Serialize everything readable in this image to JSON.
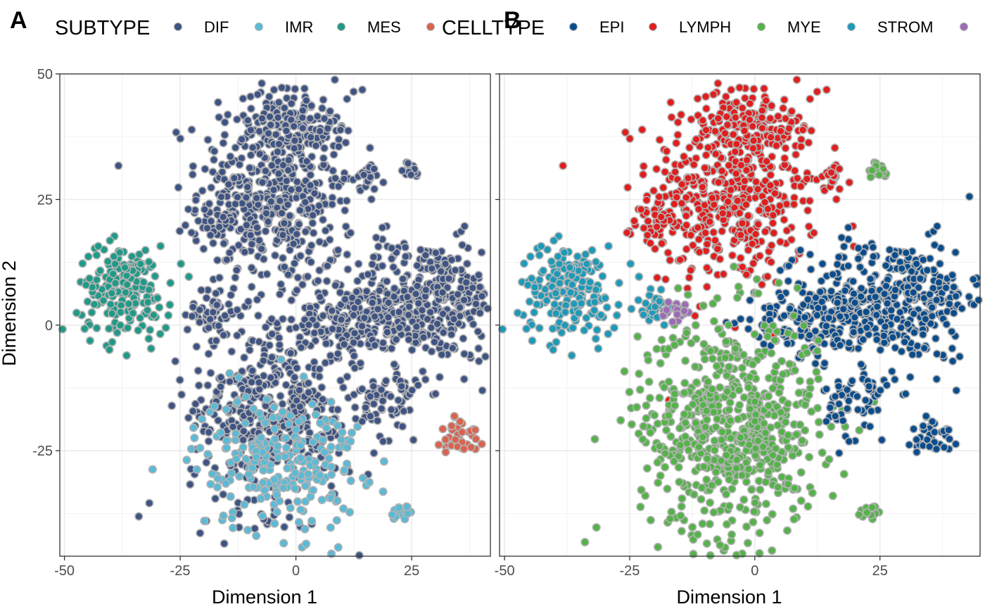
{
  "chart_data": [
    {
      "type": "scatter",
      "panel_label": "A",
      "xlabel": "Dimension 1",
      "ylabel": "Dimension 2",
      "xlim": [
        -51,
        42
      ],
      "ylim": [
        -46,
        50
      ],
      "xticks": [
        -50,
        -25,
        0,
        25
      ],
      "yticks": [
        -25,
        0,
        25,
        50
      ],
      "grid": true,
      "legend": {
        "position": "top",
        "title": "SUBTYPE",
        "entries": [
          {
            "label": "DIF",
            "color": "#3f5483"
          },
          {
            "label": "IMR",
            "color": "#5bbad5"
          },
          {
            "label": "MES",
            "color": "#1f9a87"
          },
          {
            "label": "",
            "color": "#d9634f"
          }
        ]
      },
      "point_outline_color": "#b3b3b3",
      "clusters": [
        {
          "color": "#3f5483",
          "center": [
            -4,
            27
          ],
          "spread": [
            8.5,
            10
          ],
          "count": 520
        },
        {
          "color": "#3f5483",
          "center": [
            -1,
            41
          ],
          "spread": [
            4,
            3
          ],
          "count": 70
        },
        {
          "color": "#3f5483",
          "center": [
            -15,
            21
          ],
          "spread": [
            3,
            3
          ],
          "count": 45
        },
        {
          "color": "#3f5483",
          "center": [
            28,
            5
          ],
          "spread": [
            9,
            6
          ],
          "count": 380
        },
        {
          "color": "#3f5483",
          "center": [
            13,
            1
          ],
          "spread": [
            7,
            3.5
          ],
          "count": 160
        },
        {
          "color": "#3f5483",
          "center": [
            -5,
            -17
          ],
          "spread": [
            9,
            10
          ],
          "count": 460
        },
        {
          "color": "#5bbad5",
          "center": [
            -4,
            -27
          ],
          "spread": [
            9,
            7
          ],
          "count": 240
        },
        {
          "color": "#3f5483",
          "center": [
            21,
            -15
          ],
          "spread": [
            3.5,
            4
          ],
          "count": 70
        },
        {
          "color": "#d9634f",
          "center": [
            35.5,
            -22
          ],
          "spread": [
            2,
            2.2
          ],
          "count": 40
        },
        {
          "color": "#1f9a87",
          "center": [
            -37,
            7
          ],
          "spread": [
            5,
            4.5
          ],
          "count": 200
        },
        {
          "color": "#3f5483",
          "center": [
            -18,
            3
          ],
          "spread": [
            2.5,
            2.5
          ],
          "count": 45
        },
        {
          "color": "#3f5483",
          "center": [
            15.5,
            29.5
          ],
          "spread": [
            1.3,
            1.3
          ],
          "count": 25
        },
        {
          "color": "#3f5483",
          "center": [
            25,
            31
          ],
          "spread": [
            1.2,
            1
          ],
          "count": 15
        },
        {
          "color": "#5bbad5",
          "center": [
            23,
            -37
          ],
          "spread": [
            1.2,
            1
          ],
          "count": 15
        }
      ]
    },
    {
      "type": "scatter",
      "panel_label": "B",
      "xlabel": "Dimension 1",
      "ylabel": "",
      "xlim": [
        -51,
        45
      ],
      "ylim": [
        -46,
        50
      ],
      "xticks": [
        -50,
        -25,
        0,
        25
      ],
      "yticks": [
        -25,
        0,
        25,
        50
      ],
      "grid": true,
      "legend": {
        "position": "top",
        "title": "CELLTYPE",
        "entries": [
          {
            "label": "EPI",
            "color": "#0b4d8c"
          },
          {
            "label": "LYMPH",
            "color": "#e01e1e"
          },
          {
            "label": "MYE",
            "color": "#55b24a"
          },
          {
            "label": "STROM",
            "color": "#1c9ab8"
          },
          {
            "label": "",
            "color": "#9b6bb5"
          }
        ]
      },
      "point_outline_color": "#b3b3b3",
      "clusters": [
        {
          "color": "#e01e1e",
          "center": [
            -4,
            27
          ],
          "spread": [
            8.5,
            10
          ],
          "count": 520
        },
        {
          "color": "#e01e1e",
          "center": [
            -1,
            41
          ],
          "spread": [
            4,
            3
          ],
          "count": 70
        },
        {
          "color": "#e01e1e",
          "center": [
            -18,
            21
          ],
          "spread": [
            3,
            3
          ],
          "count": 45
        },
        {
          "color": "#0b4d8c",
          "center": [
            28,
            5
          ],
          "spread": [
            9,
            6
          ],
          "count": 380
        },
        {
          "color": "#0b4d8c",
          "center": [
            13,
            1
          ],
          "spread": [
            7,
            3.5
          ],
          "count": 160
        },
        {
          "color": "#55b24a",
          "center": [
            -5,
            -20
          ],
          "spread": [
            9,
            11
          ],
          "count": 700
        },
        {
          "color": "#0b4d8c",
          "center": [
            21,
            -15
          ],
          "spread": [
            3.5,
            4
          ],
          "count": 70
        },
        {
          "color": "#0b4d8c",
          "center": [
            35.5,
            -22
          ],
          "spread": [
            2,
            2.2
          ],
          "count": 40
        },
        {
          "color": "#1c9ab8",
          "center": [
            -37,
            7
          ],
          "spread": [
            5,
            4.5
          ],
          "count": 200
        },
        {
          "color": "#1c9ab8",
          "center": [
            -20,
            4
          ],
          "spread": [
            2,
            2
          ],
          "count": 30
        },
        {
          "color": "#9b6bb5",
          "center": [
            -16,
            2.5
          ],
          "spread": [
            1.3,
            1.3
          ],
          "count": 18
        },
        {
          "color": "#e01e1e",
          "center": [
            15.5,
            29.5
          ],
          "spread": [
            1.3,
            1.3
          ],
          "count": 25
        },
        {
          "color": "#55b24a",
          "center": [
            25,
            31
          ],
          "spread": [
            1.2,
            1
          ],
          "count": 15
        },
        {
          "color": "#55b24a",
          "center": [
            23,
            -37
          ],
          "spread": [
            1.2,
            1
          ],
          "count": 15
        }
      ]
    }
  ]
}
